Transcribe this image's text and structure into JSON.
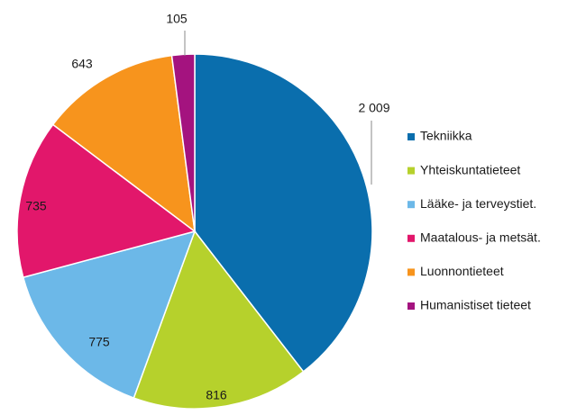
{
  "chart_data": {
    "type": "pie",
    "categories": [
      "Tekniikka",
      "Yhteiskuntatieteet",
      "Lääke- ja terveystiet.",
      "Maatalous- ja metsät.",
      "Luonnontieteet",
      "Humanistiset tieteet"
    ],
    "values": [
      2009,
      816,
      775,
      735,
      643,
      105
    ],
    "value_labels": [
      "2 009",
      "816",
      "775",
      "735",
      "643",
      "105"
    ],
    "colors": [
      "#0a6ead",
      "#b6d12c",
      "#6cb8e8",
      "#e2176b",
      "#f7941d",
      "#a4137f"
    ],
    "legend": "right"
  }
}
